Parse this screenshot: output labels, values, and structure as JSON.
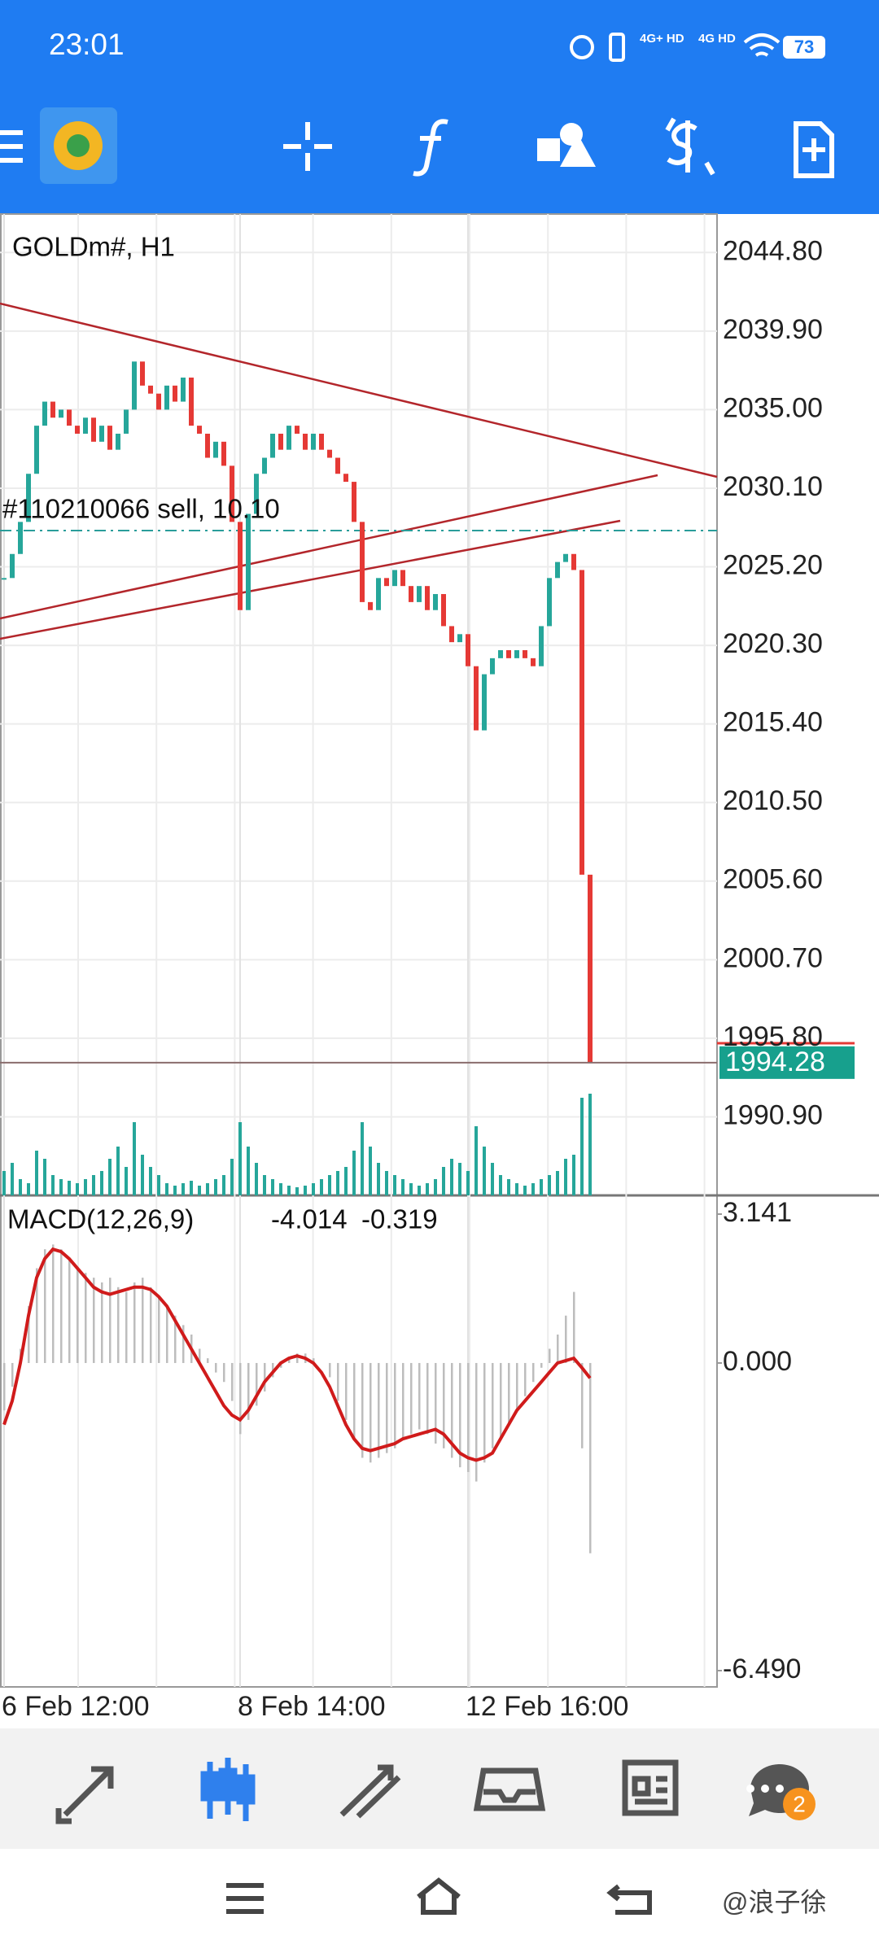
{
  "status_bar": {
    "time": "23:01",
    "network_1": "4G+ HD",
    "network_2": "4G HD",
    "battery": "73"
  },
  "chart_data": {
    "type": "candlestick",
    "title": "GOLDm#, H1",
    "trade_label": "#110210066 sell, 10.10",
    "categories": [
      "6 Feb 12:00",
      null,
      null,
      null,
      null,
      null,
      null,
      null,
      null,
      null,
      null,
      null,
      null,
      null,
      null,
      null,
      null,
      null,
      null,
      null,
      null,
      null,
      null,
      null,
      null,
      null,
      null,
      null,
      null,
      "8 Feb 14:00",
      null,
      null,
      null,
      null,
      null,
      null,
      null,
      null,
      null,
      null,
      null,
      null,
      null,
      null,
      null,
      null,
      null,
      null,
      null,
      null,
      null,
      null,
      null,
      null,
      null,
      null,
      null,
      "12 Feb 16:00",
      null,
      null,
      null,
      null,
      null,
      null,
      null,
      null,
      null,
      null,
      null,
      null,
      null,
      null,
      null
    ],
    "values": [
      2024.5,
      2026,
      2028,
      2031,
      2034,
      2035.5,
      2034.5,
      2035,
      2034,
      2033.5,
      2034.5,
      2033,
      2034,
      2032.5,
      2033.5,
      2035,
      2038,
      2036.5,
      2036,
      2035,
      2036.5,
      2035.5,
      2037,
      2034,
      2033.5,
      2032,
      2033,
      2031.5,
      2028,
      2022.5,
      2028.5,
      2031,
      2032,
      2033.5,
      2032.5,
      2034,
      2033.5,
      2032.5,
      2033.5,
      2032.5,
      2032,
      2031,
      2030.5,
      2028,
      2023,
      2022.5,
      2024.5,
      2024,
      2025,
      2024,
      2023,
      2024,
      2022.5,
      2023.5,
      2021.5,
      2020.5,
      2021,
      2019,
      2015,
      2018.5,
      2019.5,
      2020,
      2019.5,
      2020,
      2019.5,
      2019,
      2021.5,
      2024.5,
      2025.5,
      2026,
      2025,
      2006,
      1994.28
    ],
    "volume": [
      30,
      40,
      20,
      15,
      55,
      45,
      25,
      20,
      18,
      15,
      20,
      25,
      30,
      45,
      60,
      35,
      90,
      50,
      35,
      25,
      15,
      12,
      15,
      18,
      12,
      15,
      20,
      25,
      45,
      90,
      60,
      40,
      25,
      20,
      15,
      12,
      10,
      12,
      15,
      20,
      25,
      30,
      35,
      55,
      90,
      60,
      40,
      30,
      25,
      20,
      15,
      12,
      15,
      20,
      35,
      45,
      40,
      30,
      85,
      60,
      40,
      25,
      20,
      15,
      12,
      15,
      20,
      25,
      30,
      45,
      50,
      120,
      125
    ],
    "ylim": [
      1986,
      2047.2
    ],
    "yticks": [
      {
        "value": 2044.8,
        "label": "2044.80"
      },
      {
        "value": 2039.9,
        "label": "2039.90"
      },
      {
        "value": 2035,
        "label": "2035.00"
      },
      {
        "value": 2030.1,
        "label": "2030.10"
      },
      {
        "value": 2025.2,
        "label": "2025.20"
      },
      {
        "value": 2020.3,
        "label": "2020.30"
      },
      {
        "value": 2015.4,
        "label": "2015.40"
      },
      {
        "value": 2010.5,
        "label": "2010.50"
      },
      {
        "value": 2005.6,
        "label": "2005.60"
      },
      {
        "value": 2000.7,
        "label": "2000.70"
      },
      {
        "value": 1995.8,
        "label": "1995.80"
      },
      {
        "value": 1990.9,
        "label": "1990.90"
      }
    ],
    "macd": {
      "label": "MACD(12,26,9)",
      "histogram": [
        -1,
        -0.5,
        0.3,
        1.2,
        2,
        2.4,
        2.5,
        2.4,
        2.2,
        2,
        1.9,
        1.8,
        1.7,
        1.8,
        1.6,
        1.5,
        1.7,
        1.8,
        1.6,
        1.4,
        1.2,
        1,
        0.8,
        0.6,
        0.3,
        0.1,
        -0.2,
        -0.4,
        -0.8,
        -1.5,
        -1.2,
        -0.9,
        -0.6,
        -0.3,
        -0.1,
        0.1,
        0.2,
        0.2,
        0.1,
        0,
        -0.3,
        -0.8,
        -1.2,
        -1.6,
        -2,
        -2.1,
        -2,
        -1.9,
        -1.8,
        -1.6,
        -1.5,
        -1.4,
        -1.5,
        -1.7,
        -1.8,
        -2,
        -2.2,
        -2.3,
        -2.5,
        -2.1,
        -1.8,
        -1.6,
        -1.3,
        -1,
        -0.7,
        -0.4,
        -0.1,
        0.3,
        0.6,
        1,
        1.5,
        -1.8,
        -4.014
      ],
      "signal": [
        -1.3,
        -0.8,
        0,
        1,
        1.8,
        2.2,
        2.4,
        2.35,
        2.2,
        2,
        1.8,
        1.6,
        1.5,
        1.45,
        1.5,
        1.55,
        1.6,
        1.6,
        1.55,
        1.4,
        1.2,
        0.9,
        0.6,
        0.3,
        0,
        -0.3,
        -0.6,
        -0.9,
        -1.1,
        -1.2,
        -1,
        -0.7,
        -0.4,
        -0.2,
        0,
        0.1,
        0.15,
        0.1,
        0,
        -0.2,
        -0.5,
        -0.9,
        -1.3,
        -1.6,
        -1.8,
        -1.85,
        -1.8,
        -1.75,
        -1.7,
        -1.6,
        -1.55,
        -1.5,
        -1.45,
        -1.4,
        -1.5,
        -1.7,
        -1.9,
        -2,
        -2.05,
        -2,
        -1.9,
        -1.6,
        -1.3,
        -1,
        -0.8,
        -0.6,
        -0.4,
        -0.2,
        0,
        0.05,
        0.1,
        -0.1,
        -0.319
      ],
      "ylim": [
        -6.49,
        3.141
      ],
      "yticks": [
        3.141,
        {
          "value": 0,
          "label": "0.000"
        },
        {
          "value": -6.49,
          "label": "-6.490"
        }
      ]
    }
  },
  "bottom_nav": {
    "badge": 2
  },
  "watermark": "@浪子徐"
}
